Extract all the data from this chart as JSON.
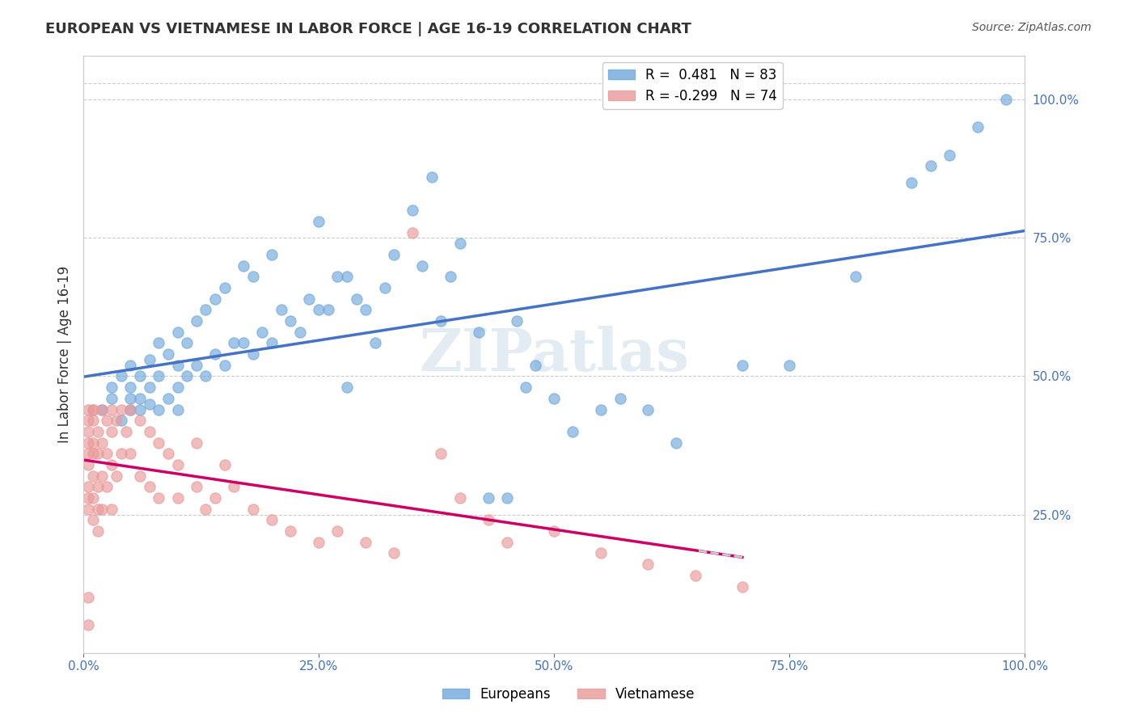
{
  "title": "EUROPEAN VS VIETNAMESE IN LABOR FORCE | AGE 16-19 CORRELATION CHART",
  "source": "Source: ZipAtlas.com",
  "ylabel": "In Labor Force | Age 16-19",
  "xlabel": "",
  "xlim": [
    0,
    1.0
  ],
  "ylim": [
    0,
    1.1
  ],
  "xticks": [
    0,
    0.25,
    0.5,
    0.75,
    1.0
  ],
  "xtick_labels": [
    "0.0%",
    "25.0%",
    "50.0%",
    "75.0%",
    "100.0%"
  ],
  "ytick_labels_right": [
    "25.0%",
    "50.0%",
    "75.0%",
    "100.0%"
  ],
  "ytick_vals_right": [
    0.25,
    0.5,
    0.75,
    1.0
  ],
  "r_european": 0.481,
  "n_european": 83,
  "r_vietnamese": -0.299,
  "n_vietnamese": 74,
  "blue_color": "#6fa8dc",
  "pink_color": "#ea9999",
  "trend_blue": "#4472c4",
  "trend_pink": "#cc0066",
  "trend_dashed": "#cccccc",
  "axis_color": "#4472c4",
  "watermark": "ZIPatlas",
  "legend_label_european": "Europeans",
  "legend_label_vietnamese": "Vietnamese",
  "european_x": [
    0.02,
    0.03,
    0.03,
    0.04,
    0.04,
    0.05,
    0.05,
    0.05,
    0.05,
    0.06,
    0.06,
    0.06,
    0.07,
    0.07,
    0.07,
    0.08,
    0.08,
    0.08,
    0.09,
    0.09,
    0.1,
    0.1,
    0.1,
    0.1,
    0.11,
    0.11,
    0.12,
    0.12,
    0.13,
    0.13,
    0.14,
    0.14,
    0.15,
    0.15,
    0.16,
    0.17,
    0.17,
    0.18,
    0.18,
    0.19,
    0.2,
    0.2,
    0.21,
    0.22,
    0.23,
    0.24,
    0.25,
    0.25,
    0.26,
    0.27,
    0.28,
    0.28,
    0.29,
    0.3,
    0.31,
    0.32,
    0.33,
    0.35,
    0.36,
    0.37,
    0.38,
    0.39,
    0.4,
    0.42,
    0.43,
    0.45,
    0.46,
    0.47,
    0.48,
    0.5,
    0.52,
    0.55,
    0.57,
    0.6,
    0.63,
    0.7,
    0.75,
    0.82,
    0.88,
    0.9,
    0.92,
    0.95,
    0.98
  ],
  "european_y": [
    0.44,
    0.46,
    0.48,
    0.42,
    0.5,
    0.44,
    0.46,
    0.48,
    0.52,
    0.44,
    0.46,
    0.5,
    0.45,
    0.48,
    0.53,
    0.44,
    0.5,
    0.56,
    0.46,
    0.54,
    0.44,
    0.48,
    0.52,
    0.58,
    0.5,
    0.56,
    0.52,
    0.6,
    0.5,
    0.62,
    0.54,
    0.64,
    0.52,
    0.66,
    0.56,
    0.56,
    0.7,
    0.54,
    0.68,
    0.58,
    0.56,
    0.72,
    0.62,
    0.6,
    0.58,
    0.64,
    0.62,
    0.78,
    0.62,
    0.68,
    0.48,
    0.68,
    0.64,
    0.62,
    0.56,
    0.66,
    0.72,
    0.8,
    0.7,
    0.86,
    0.6,
    0.68,
    0.74,
    0.58,
    0.28,
    0.28,
    0.6,
    0.48,
    0.52,
    0.46,
    0.4,
    0.44,
    0.46,
    0.44,
    0.38,
    0.52,
    0.52,
    0.68,
    0.85,
    0.88,
    0.9,
    0.95,
    1.0
  ],
  "vietnamese_x": [
    0.005,
    0.005,
    0.005,
    0.005,
    0.005,
    0.005,
    0.005,
    0.005,
    0.005,
    0.005,
    0.005,
    0.01,
    0.01,
    0.01,
    0.01,
    0.01,
    0.01,
    0.01,
    0.01,
    0.015,
    0.015,
    0.015,
    0.015,
    0.015,
    0.02,
    0.02,
    0.02,
    0.02,
    0.025,
    0.025,
    0.025,
    0.03,
    0.03,
    0.03,
    0.03,
    0.035,
    0.035,
    0.04,
    0.04,
    0.045,
    0.05,
    0.05,
    0.06,
    0.06,
    0.07,
    0.07,
    0.08,
    0.08,
    0.09,
    0.1,
    0.1,
    0.12,
    0.12,
    0.13,
    0.14,
    0.15,
    0.16,
    0.18,
    0.2,
    0.22,
    0.25,
    0.27,
    0.3,
    0.33,
    0.35,
    0.38,
    0.4,
    0.43,
    0.45,
    0.5,
    0.55,
    0.6,
    0.65,
    0.7
  ],
  "vietnamese_y": [
    0.44,
    0.42,
    0.4,
    0.38,
    0.36,
    0.34,
    0.3,
    0.28,
    0.26,
    0.1,
    0.05,
    0.44,
    0.42,
    0.38,
    0.36,
    0.32,
    0.28,
    0.24,
    0.44,
    0.4,
    0.36,
    0.3,
    0.26,
    0.22,
    0.44,
    0.38,
    0.32,
    0.26,
    0.42,
    0.36,
    0.3,
    0.44,
    0.4,
    0.34,
    0.26,
    0.42,
    0.32,
    0.44,
    0.36,
    0.4,
    0.44,
    0.36,
    0.42,
    0.32,
    0.4,
    0.3,
    0.38,
    0.28,
    0.36,
    0.34,
    0.28,
    0.38,
    0.3,
    0.26,
    0.28,
    0.34,
    0.3,
    0.26,
    0.24,
    0.22,
    0.2,
    0.22,
    0.2,
    0.18,
    0.76,
    0.36,
    0.28,
    0.24,
    0.2,
    0.22,
    0.18,
    0.16,
    0.14,
    0.12
  ]
}
